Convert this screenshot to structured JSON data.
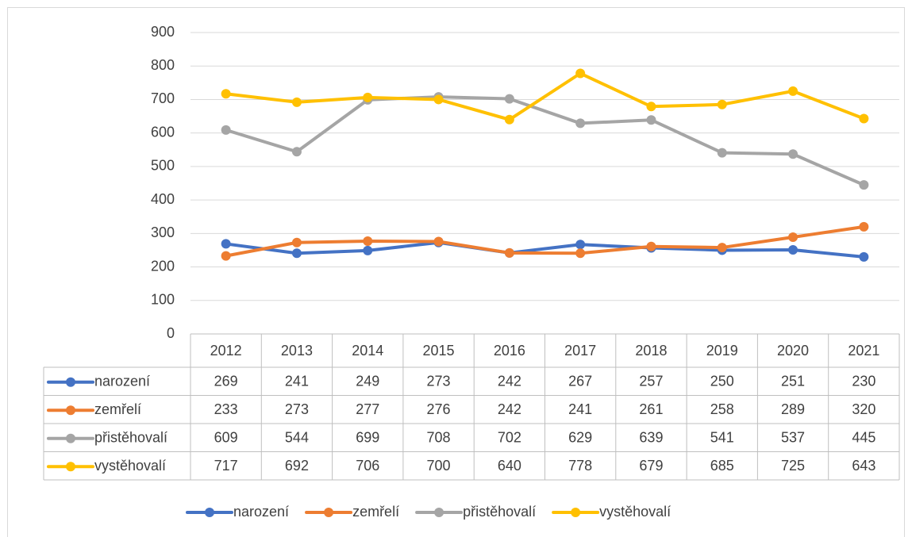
{
  "chart_data": {
    "type": "line",
    "categories": [
      "2012",
      "2013",
      "2014",
      "2015",
      "2016",
      "2017",
      "2018",
      "2019",
      "2020",
      "2021"
    ],
    "series": [
      {
        "name": "narození",
        "color": "#4472c4",
        "values": [
          269,
          241,
          249,
          273,
          242,
          267,
          257,
          250,
          251,
          230
        ]
      },
      {
        "name": "zemřelí",
        "color": "#ed7d31",
        "values": [
          233,
          273,
          277,
          276,
          242,
          241,
          261,
          258,
          289,
          320
        ]
      },
      {
        "name": "přistěhovalí",
        "color": "#a5a5a5",
        "values": [
          609,
          544,
          699,
          708,
          702,
          629,
          639,
          541,
          537,
          445
        ]
      },
      {
        "name": "vystěhovalí",
        "color": "#ffc000",
        "values": [
          717,
          692,
          706,
          700,
          640,
          778,
          679,
          685,
          725,
          643
        ]
      }
    ],
    "ylim": [
      0,
      900
    ],
    "yticks": [
      0,
      100,
      200,
      300,
      400,
      500,
      600,
      700,
      800,
      900
    ],
    "grid": true,
    "data_table": true,
    "legend": "bottom"
  }
}
